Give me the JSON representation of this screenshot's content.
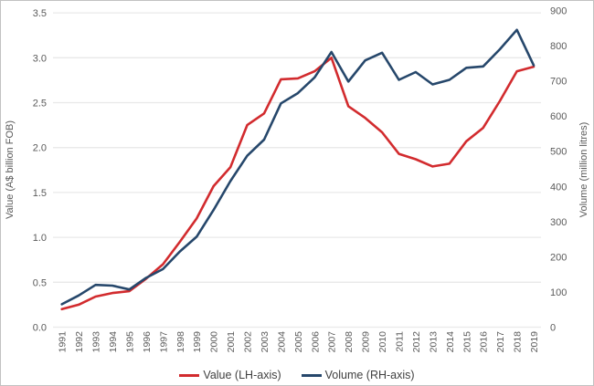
{
  "chart_data": {
    "type": "line",
    "title": "",
    "x": [
      "1991",
      "1992",
      "1993",
      "1994",
      "1995",
      "1996",
      "1997",
      "1998",
      "1999",
      "2000",
      "2001",
      "2002",
      "2003",
      "2004",
      "2005",
      "2006",
      "2007",
      "2008",
      "2009",
      "2010",
      "2011",
      "2012",
      "2013",
      "2014",
      "2015",
      "2016",
      "2017",
      "2018",
      "2019"
    ],
    "series": [
      {
        "name": "Value (LH-axis)",
        "axis": "left",
        "color": "#d22b2e",
        "values": [
          0.2,
          0.25,
          0.34,
          0.38,
          0.4,
          0.54,
          0.7,
          0.95,
          1.21,
          1.57,
          1.78,
          2.25,
          2.38,
          2.76,
          2.77,
          2.85,
          3.0,
          2.46,
          2.33,
          2.17,
          1.93,
          1.87,
          1.79,
          1.82,
          2.07,
          2.22,
          2.52,
          2.85,
          2.9
        ]
      },
      {
        "name": "Volume (RH-axis)",
        "axis": "right",
        "color": "#26476b",
        "values": [
          65,
          90,
          120,
          118,
          107,
          140,
          165,
          215,
          257,
          333,
          415,
          487,
          533,
          636,
          665,
          710,
          782,
          698,
          758,
          780,
          703,
          725,
          690,
          703,
          737,
          741,
          790,
          845,
          744
        ]
      }
    ],
    "left_axis": {
      "label": "Value (A$ billion FOB)",
      "min": 0,
      "max": 3.5,
      "step": 0.5,
      "tick_labels": [
        "0.0",
        "0.5",
        "1.0",
        "1.5",
        "2.0",
        "2.5",
        "3.0",
        "3.5"
      ]
    },
    "right_axis": {
      "label": "Volume (million litres)",
      "min": 0,
      "max": 900,
      "step": 100,
      "tick_labels": [
        "0",
        "100",
        "200",
        "300",
        "400",
        "500",
        "600",
        "700",
        "800",
        "900"
      ]
    },
    "grid": true,
    "legend_position": "bottom",
    "colors": {
      "gridline": "#e9e9e9",
      "tick_text": "#5a5a5a",
      "legend_text": "#404040"
    }
  },
  "legend": {
    "items": [
      {
        "label": "Value (LH-axis)",
        "color": "#d22b2e"
      },
      {
        "label": "Volume (RH-axis)",
        "color": "#26476b"
      }
    ]
  }
}
